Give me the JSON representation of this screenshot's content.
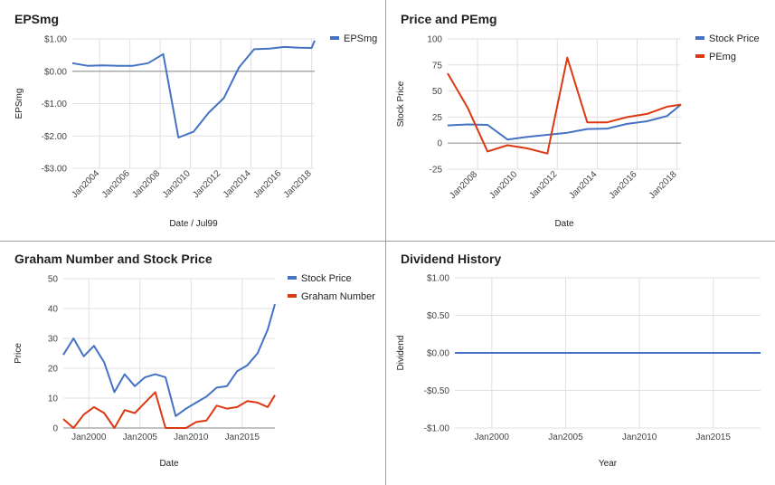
{
  "colors": {
    "blue": "#4472c4",
    "red": "#dc3912",
    "grid": "#e0e0e0",
    "zero": "#9e9e9e"
  },
  "chart_data": [
    {
      "id": "eps",
      "type": "line",
      "title": "EPSmg",
      "xlabel": "Date / Jul99",
      "ylabel": "EPSmg",
      "ylim": [
        -3,
        1
      ],
      "yticks": [
        1,
        0,
        -1,
        -2,
        -3
      ],
      "ytick_labels": [
        "$1.00",
        "$0.00",
        "-$1.00",
        "-$2.00",
        "-$3.00"
      ],
      "xlim": [
        2002.2,
        2018.2
      ],
      "xticks": [
        2004,
        2006,
        2008,
        2010,
        2012,
        2014,
        2016,
        2018
      ],
      "xtick_labels": [
        "Jan2004",
        "Jan2006",
        "Jan2008",
        "Jan2010",
        "Jan2012",
        "Jan2014",
        "Jan2016",
        "Jan2018"
      ],
      "xtick_rotate": true,
      "legend": "right",
      "series": [
        {
          "name": "EPSmg",
          "color": "#4472c4",
          "x": [
            2002.2,
            2003.2,
            2004.2,
            2005.2,
            2006.2,
            2007.2,
            2008.2,
            2009.2,
            2010.2,
            2011.2,
            2012.2,
            2013.2,
            2014.2,
            2015.2,
            2016.2,
            2017.2,
            2018.0,
            2018.2
          ],
          "y": [
            0.25,
            0.17,
            0.18,
            0.17,
            0.17,
            0.25,
            0.53,
            -2.05,
            -1.87,
            -1.28,
            -0.83,
            0.12,
            0.68,
            0.7,
            0.75,
            0.73,
            0.72,
            0.95
          ]
        }
      ]
    },
    {
      "id": "pe",
      "type": "line",
      "title": "Price and PEmg",
      "xlabel": "Date",
      "ylabel": "Stock Price",
      "ylim": [
        -25,
        100
      ],
      "yticks": [
        100,
        75,
        50,
        25,
        0,
        -25
      ],
      "ytick_labels": [
        "100",
        "75",
        "50",
        "25",
        "0",
        "-25"
      ],
      "xlim": [
        2006.5,
        2018.2
      ],
      "xticks": [
        2008,
        2010,
        2012,
        2014,
        2016,
        2018
      ],
      "xtick_labels": [
        "Jan2008",
        "Jan2010",
        "Jan2012",
        "Jan2014",
        "Jan2016",
        "Jan2018"
      ],
      "xtick_rotate": true,
      "legend": "right",
      "series": [
        {
          "name": "Stock Price",
          "color": "#4472c4",
          "x": [
            2006.5,
            2007.5,
            2008.5,
            2009.5,
            2010.5,
            2011.5,
            2012.5,
            2013.5,
            2014.5,
            2015.5,
            2016.5,
            2017.5,
            2018.2
          ],
          "y": [
            17,
            18,
            17.5,
            3.5,
            6,
            8,
            10,
            13.5,
            14,
            18.5,
            21,
            26,
            37
          ]
        },
        {
          "name": "PEmg",
          "color": "#dc3912",
          "x": [
            2006.5,
            2007.5,
            2008.5,
            2009.5,
            2010.5,
            2011.5,
            2012.5,
            2013.5,
            2014.5,
            2015.5,
            2016.5,
            2017.5,
            2018.2
          ],
          "y": [
            67,
            34,
            -8,
            -2,
            -5,
            -10,
            82,
            20,
            20,
            25,
            28,
            35,
            37
          ]
        }
      ]
    },
    {
      "id": "graham",
      "type": "line",
      "title": "Graham Number and Stock Price",
      "xlabel": "Date",
      "ylabel": "Price",
      "ylim": [
        0,
        50
      ],
      "yticks": [
        50,
        40,
        30,
        20,
        10,
        0
      ],
      "ytick_labels": [
        "50",
        "40",
        "30",
        "20",
        "10",
        "0"
      ],
      "xlim": [
        1997.5,
        2018.2
      ],
      "xticks": [
        2000,
        2005,
        2010,
        2015
      ],
      "xtick_labels": [
        "Jan2000",
        "Jan2005",
        "Jan2010",
        "Jan2015"
      ],
      "xtick_rotate": false,
      "legend": "right",
      "series": [
        {
          "name": "Stock Price",
          "color": "#4472c4",
          "x": [
            1997.5,
            1998.5,
            1999.5,
            2000.5,
            2001.5,
            2002.5,
            2003.5,
            2004.5,
            2005.5,
            2006.5,
            2007.5,
            2008.5,
            2009.5,
            2010.5,
            2011.5,
            2012.5,
            2013.5,
            2014.5,
            2015.5,
            2016.5,
            2017.5,
            2018.2
          ],
          "y": [
            24.5,
            30,
            24,
            27.5,
            22,
            12,
            18,
            14,
            17,
            18,
            17,
            4,
            6.5,
            8.5,
            10.5,
            13.5,
            14,
            19,
            21,
            25,
            33,
            41.5
          ]
        },
        {
          "name": "Graham Number",
          "color": "#dc3912",
          "x": [
            1997.5,
            1998.5,
            1999.5,
            2000.5,
            2001.5,
            2002.5,
            2003.5,
            2004.5,
            2005.5,
            2006.5,
            2007.5,
            2008.5,
            2009.5,
            2010.5,
            2011.5,
            2012.5,
            2013.5,
            2014.5,
            2015.5,
            2016.5,
            2017.5,
            2018.2
          ],
          "y": [
            3,
            0,
            4.5,
            7,
            5,
            0,
            6,
            5,
            8.5,
            12,
            0,
            0,
            0,
            2,
            2.5,
            7.5,
            6.5,
            7,
            9,
            8.5,
            7,
            11
          ]
        }
      ]
    },
    {
      "id": "div",
      "type": "line",
      "title": "Dividend History",
      "xlabel": "Year",
      "ylabel": "Dividend",
      "ylim": [
        -1,
        1
      ],
      "yticks": [
        1,
        0.5,
        0,
        -0.5,
        -1
      ],
      "ytick_labels": [
        "$1.00",
        "$0.50",
        "$0.00",
        "-$0.50",
        "-$1.00"
      ],
      "xlim": [
        1997.5,
        2018.2
      ],
      "xticks": [
        2000,
        2005,
        2010,
        2015
      ],
      "xtick_labels": [
        "Jan2000",
        "Jan2005",
        "Jan2010",
        "Jan2015"
      ],
      "xtick_rotate": false,
      "legend": "none",
      "series": [
        {
          "name": "",
          "color": "#4472c4",
          "x": [
            1997.5,
            2018.2
          ],
          "y": [
            0,
            0
          ]
        }
      ]
    }
  ]
}
